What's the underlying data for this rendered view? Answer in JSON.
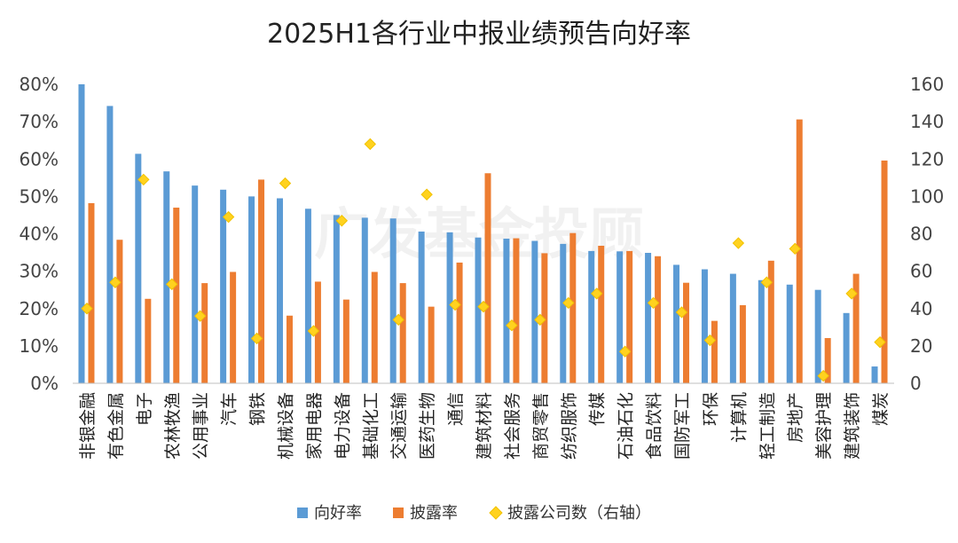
{
  "chart_data": {
    "type": "bar",
    "title": "2025H1各行业中报业绩预告向好率",
    "watermark": "广发基金投顾",
    "categories": [
      "非银金融",
      "有色金属",
      "电子",
      "农林牧渔",
      "公用事业",
      "汽车",
      "钢铁",
      "机械设备",
      "家用电器",
      "电力设备",
      "基础化工",
      "交通运输",
      "医药生物",
      "通信",
      "建筑材料",
      "社会服务",
      "商贸零售",
      "纺织服饰",
      "传媒",
      "石油石化",
      "食品饮料",
      "国防军工",
      "环保",
      "计算机",
      "轻工制造",
      "房地产",
      "美容护理",
      "建筑装饰",
      "煤炭"
    ],
    "series": [
      {
        "name": "向好率",
        "type": "bar",
        "axis": "left",
        "color": "#5B9BD5",
        "values": [
          80.0,
          74.2,
          61.4,
          56.7,
          52.9,
          51.8,
          50.0,
          49.5,
          46.7,
          45.0,
          44.3,
          44.1,
          40.6,
          40.4,
          39.0,
          38.7,
          38.1,
          37.3,
          35.4,
          35.3,
          34.9,
          31.7,
          30.5,
          29.3,
          27.6,
          26.4,
          25.0,
          18.8,
          4.5
        ]
      },
      {
        "name": "披露率",
        "type": "bar",
        "axis": "left",
        "color": "#ED7D31",
        "values": [
          48.2,
          38.4,
          22.6,
          47.0,
          26.8,
          29.8,
          54.5,
          18.1,
          27.2,
          22.4,
          29.8,
          26.8,
          20.5,
          32.3,
          56.2,
          38.8,
          34.8,
          40.2,
          36.8,
          35.4,
          34.0,
          26.9,
          16.7,
          20.9,
          32.8,
          70.6,
          12.1,
          29.3,
          59.6
        ]
      },
      {
        "name": "披露公司数（右轴）",
        "type": "scatter",
        "axis": "right",
        "color": "#FFD21F",
        "values": [
          40,
          54,
          109,
          53,
          36,
          89,
          24,
          107,
          28,
          87,
          128,
          34,
          101,
          42,
          41,
          31,
          34,
          43,
          48,
          17,
          43,
          38,
          23,
          75,
          54,
          72,
          4,
          48,
          22
        ]
      }
    ],
    "y_left": {
      "min": 0,
      "max": 80,
      "ticks": [
        "0%",
        "10%",
        "20%",
        "30%",
        "40%",
        "50%",
        "60%",
        "70%",
        "80%"
      ]
    },
    "y_right": {
      "min": 0,
      "max": 160,
      "ticks": [
        "0",
        "20",
        "40",
        "60",
        "80",
        "100",
        "120",
        "140",
        "160"
      ]
    },
    "grid": false,
    "legend_position": "bottom"
  }
}
